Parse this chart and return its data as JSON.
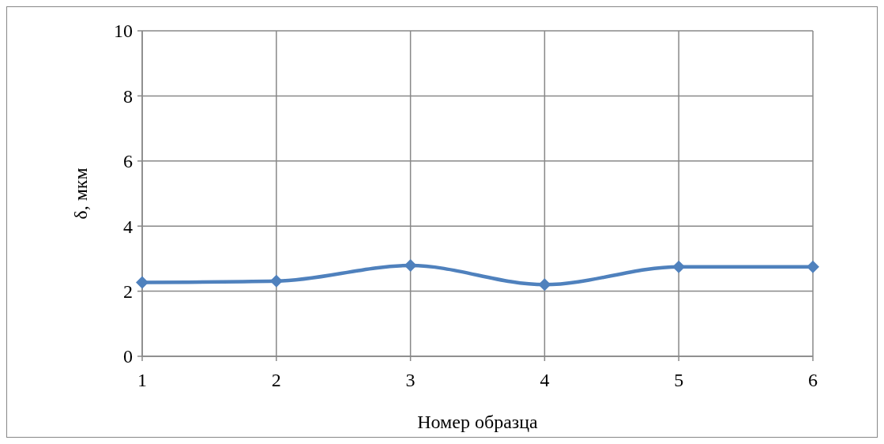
{
  "chart_data": {
    "type": "line",
    "xlabel": "Номер образца",
    "ylabel": "δ, мкм",
    "x": [
      1,
      2,
      3,
      4,
      5,
      6
    ],
    "series": [
      {
        "color": "#4f81bd",
        "values": [
          2.27,
          2.31,
          2.79,
          2.2,
          2.75,
          2.75
        ]
      }
    ],
    "xlim": [
      1,
      6
    ],
    "xticks": [
      1,
      2,
      3,
      4,
      5,
      6
    ],
    "ylim": [
      0,
      10
    ],
    "yticks": [
      0,
      2,
      4,
      6,
      8,
      10
    ],
    "grid": true,
    "marker": "diamond",
    "line_style": "solid"
  }
}
